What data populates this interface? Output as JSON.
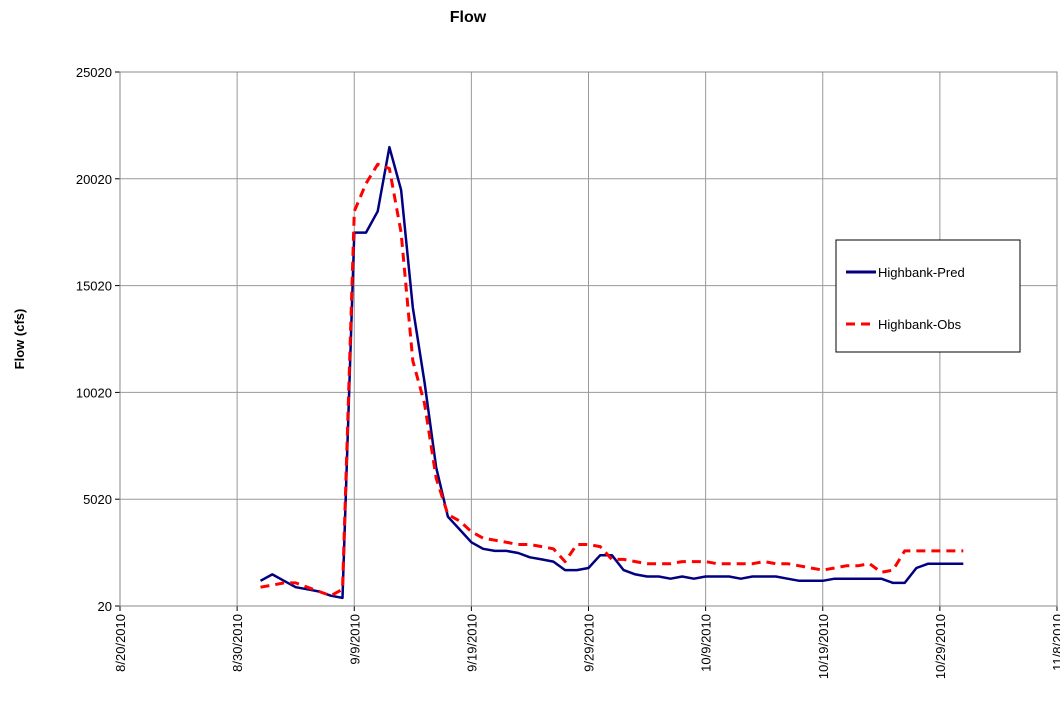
{
  "chart_data": {
    "type": "line",
    "title": "Flow",
    "y_label": "Flow (cfs)",
    "x": [
      "9/1/2010",
      "9/2/2010",
      "9/3/2010",
      "9/4/2010",
      "9/5/2010",
      "9/6/2010",
      "9/7/2010",
      "9/8/2010",
      "9/9/2010",
      "9/10/2010",
      "9/11/2010",
      "9/12/2010",
      "9/13/2010",
      "9/14/2010",
      "9/15/2010",
      "9/16/2010",
      "9/17/2010",
      "9/18/2010",
      "9/19/2010",
      "9/20/2010",
      "9/21/2010",
      "9/22/2010",
      "9/23/2010",
      "9/24/2010",
      "9/25/2010",
      "9/26/2010",
      "9/27/2010",
      "9/28/2010",
      "9/29/2010",
      "9/30/2010",
      "10/1/2010",
      "10/2/2010",
      "10/3/2010",
      "10/4/2010",
      "10/5/2010",
      "10/6/2010",
      "10/7/2010",
      "10/8/2010",
      "10/9/2010",
      "10/10/2010",
      "10/11/2010",
      "10/12/2010",
      "10/13/2010",
      "10/14/2010",
      "10/15/2010",
      "10/16/2010",
      "10/17/2010",
      "10/18/2010",
      "10/19/2010",
      "10/20/2010",
      "10/21/2010",
      "10/22/2010",
      "10/23/2010",
      "10/24/2010",
      "10/25/2010",
      "10/26/2010",
      "10/27/2010",
      "10/28/2010",
      "10/29/2010",
      "10/30/2010",
      "10/31/2010"
    ],
    "series": [
      {
        "name": "Highbank-Pred",
        "color": "#000080",
        "style": "solid",
        "values": [
          1200,
          1500,
          1200,
          900,
          800,
          700,
          500,
          400,
          17500,
          17500,
          18500,
          21500,
          19500,
          14000,
          10500,
          6500,
          4200,
          3600,
          3000,
          2700,
          2600,
          2600,
          2500,
          2300,
          2200,
          2100,
          1700,
          1700,
          1800,
          2400,
          2400,
          1700,
          1500,
          1400,
          1400,
          1300,
          1400,
          1300,
          1400,
          1400,
          1400,
          1300,
          1400,
          1400,
          1400,
          1300,
          1200,
          1200,
          1200,
          1300,
          1300,
          1300,
          1300,
          1300,
          1100,
          1100,
          1800,
          2000,
          2000,
          2000,
          2000
        ]
      },
      {
        "name": "Highbank-Obs",
        "color": "#ff0000",
        "style": "dashed",
        "values": [
          900,
          1000,
          1100,
          1100,
          900,
          700,
          500,
          800,
          18500,
          19800,
          20700,
          20500,
          17500,
          11500,
          9500,
          6000,
          4300,
          4000,
          3500,
          3200,
          3100,
          3000,
          2900,
          2900,
          2800,
          2700,
          2100,
          2900,
          2900,
          2800,
          2200,
          2200,
          2100,
          2000,
          2000,
          2000,
          2100,
          2100,
          2100,
          2000,
          2000,
          2000,
          2000,
          2100,
          2000,
          2000,
          1900,
          1800,
          1700,
          1800,
          1900,
          1900,
          2000,
          1600,
          1700,
          2600,
          2600,
          2600,
          2600,
          2600,
          2600
        ]
      }
    ],
    "xlim": [
      "8/20/2010",
      "11/8/2010"
    ],
    "xticks": [
      "8/20/2010",
      "8/30/2010",
      "9/9/2010",
      "9/19/2010",
      "9/29/2010",
      "10/9/2010",
      "10/19/2010",
      "10/29/2010",
      "11/8/2010"
    ],
    "ylim": [
      20,
      25020
    ],
    "yticks": [
      20,
      5020,
      10020,
      15020,
      20020,
      25020
    ],
    "grid": true,
    "legend": "right"
  }
}
